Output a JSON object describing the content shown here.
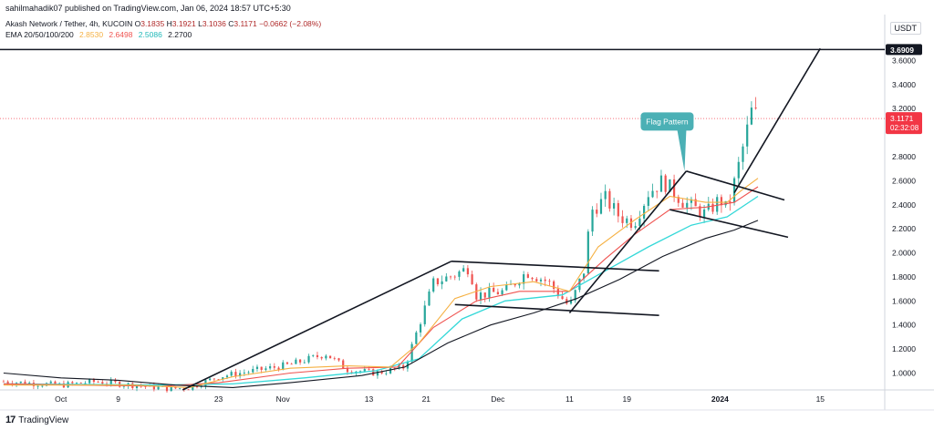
{
  "header": {
    "publisher": "sahilmahadik07 published on TradingView.com, Jan 06, 2024 18:57 UTC+5:30"
  },
  "symbol_line": {
    "symbol": "Akash Network / Tether, 4h, KUCOIN",
    "open_label": "O",
    "open": "3.1835",
    "high_label": "H",
    "high": "3.1921",
    "low_label": "L",
    "low": "3.1036",
    "close_label": "C",
    "close": "3.1171",
    "change": "−0.0662 (−2.08%)"
  },
  "ema_line": {
    "label": "EMA 20/50/100/200",
    "ema20": "2.8530",
    "ema50": "2.6498",
    "ema100": "2.5086",
    "ema200": "2.2700"
  },
  "currency": "USDT",
  "footer": {
    "logo_text": "TradingView",
    "logo_mark": "17"
  },
  "colors": {
    "up": "#26a69a",
    "down": "#ef5350",
    "ema20": "#f5b041",
    "ema50": "#ef5350",
    "ema100": "#34d8d8",
    "ema200": "#131722",
    "price_tag": "#f23645",
    "level_tag": "#131722",
    "annotation": "#4bb0b5"
  },
  "chart_data": {
    "type": "candlestick",
    "y_ticks": [
      "1.0000",
      "1.2000",
      "1.4000",
      "1.6000",
      "1.8000",
      "2.0000",
      "2.2000",
      "2.4000",
      "2.6000",
      "2.8000",
      "3.2000",
      "3.4000",
      "3.6000"
    ],
    "ylim": [
      0.86,
      3.8
    ],
    "x_ticks": [
      {
        "label": "Oct",
        "t": 0.0
      },
      {
        "label": "9",
        "t": 8.0
      },
      {
        "label": "23",
        "t": 22.0
      },
      {
        "label": "Nov",
        "t": 31.0
      },
      {
        "label": "13",
        "t": 43.0
      },
      {
        "label": "21",
        "t": 51.0
      },
      {
        "label": "Dec",
        "t": 61.0
      },
      {
        "label": "11",
        "t": 71.0
      },
      {
        "label": "19",
        "t": 79.0
      },
      {
        "label": "2024",
        "t": 92.0
      },
      {
        "label": "15",
        "t": 106.0
      }
    ],
    "xlim": [
      -8.5,
      115
    ],
    "current_price": {
      "value": 3.1171,
      "label": "3.1171",
      "countdown": "02:32:08"
    },
    "resistance": {
      "value": 3.6909,
      "label": "3.6909"
    },
    "annotation": {
      "text": "Flag Pattern",
      "x": 84.5,
      "y": 3.1
    },
    "price_path": [
      [
        -8,
        0.93
      ],
      [
        0,
        0.9
      ],
      [
        5,
        0.93
      ],
      [
        10,
        0.9
      ],
      [
        15,
        0.87
      ],
      [
        18,
        0.88
      ],
      [
        22,
        0.97
      ],
      [
        27,
        1.02
      ],
      [
        32,
        1.07
      ],
      [
        37,
        1.16
      ],
      [
        40,
        1.03
      ],
      [
        44,
        1.0
      ],
      [
        48,
        1.05
      ],
      [
        50,
        1.4
      ],
      [
        52,
        1.75
      ],
      [
        55,
        1.82
      ],
      [
        57,
        1.88
      ],
      [
        58,
        1.65
      ],
      [
        62,
        1.68
      ],
      [
        65,
        1.84
      ],
      [
        68,
        1.76
      ],
      [
        71,
        1.55
      ],
      [
        73,
        1.85
      ],
      [
        74,
        2.35
      ],
      [
        76,
        2.45
      ],
      [
        78,
        2.3
      ],
      [
        80,
        2.25
      ],
      [
        82,
        2.5
      ],
      [
        84,
        2.6
      ],
      [
        87,
        2.42
      ],
      [
        90,
        2.32
      ],
      [
        92,
        2.45
      ],
      [
        93,
        2.35
      ],
      [
        94.5,
        2.7
      ],
      [
        95.5,
        2.95
      ],
      [
        96.5,
        3.2
      ],
      [
        97.3,
        3.12
      ]
    ],
    "ema20_path": [
      [
        -8,
        0.9
      ],
      [
        10,
        0.9
      ],
      [
        18,
        0.88
      ],
      [
        24,
        0.97
      ],
      [
        32,
        1.04
      ],
      [
        40,
        1.06
      ],
      [
        46,
        1.05
      ],
      [
        50,
        1.25
      ],
      [
        55,
        1.62
      ],
      [
        60,
        1.72
      ],
      [
        66,
        1.76
      ],
      [
        71,
        1.68
      ],
      [
        75,
        2.05
      ],
      [
        80,
        2.27
      ],
      [
        85,
        2.47
      ],
      [
        90,
        2.42
      ],
      [
        93,
        2.42
      ],
      [
        95,
        2.52
      ],
      [
        97.3,
        2.62
      ]
    ],
    "ema50_path": [
      [
        -8,
        0.91
      ],
      [
        14,
        0.89
      ],
      [
        22,
        0.92
      ],
      [
        32,
        1.0
      ],
      [
        40,
        1.04
      ],
      [
        47,
        1.05
      ],
      [
        52,
        1.38
      ],
      [
        58,
        1.6
      ],
      [
        64,
        1.68
      ],
      [
        71,
        1.68
      ],
      [
        76,
        1.95
      ],
      [
        80,
        2.15
      ],
      [
        85,
        2.36
      ],
      [
        90,
        2.38
      ],
      [
        94,
        2.42
      ],
      [
        97.3,
        2.55
      ]
    ],
    "ema100_path": [
      [
        -8,
        0.91
      ],
      [
        14,
        0.9
      ],
      [
        24,
        0.91
      ],
      [
        34,
        0.96
      ],
      [
        44,
        1.02
      ],
      [
        50,
        1.12
      ],
      [
        56,
        1.45
      ],
      [
        62,
        1.6
      ],
      [
        70,
        1.65
      ],
      [
        76,
        1.85
      ],
      [
        82,
        2.05
      ],
      [
        88,
        2.23
      ],
      [
        93,
        2.3
      ],
      [
        97.3,
        2.47
      ]
    ],
    "ema200_path": [
      [
        -8,
        1.0
      ],
      [
        0,
        0.96
      ],
      [
        8,
        0.94
      ],
      [
        16,
        0.9
      ],
      [
        24,
        0.88
      ],
      [
        32,
        0.92
      ],
      [
        42,
        0.98
      ],
      [
        48,
        1.05
      ],
      [
        54,
        1.25
      ],
      [
        60,
        1.4
      ],
      [
        66,
        1.5
      ],
      [
        72,
        1.62
      ],
      [
        78,
        1.78
      ],
      [
        84,
        1.97
      ],
      [
        90,
        2.12
      ],
      [
        94,
        2.19
      ],
      [
        97.3,
        2.27
      ]
    ],
    "trendlines": [
      [
        [
          17,
          0.86
        ],
        [
          54.5,
          1.93
        ]
      ],
      [
        [
          54.5,
          1.93
        ],
        [
          83.5,
          1.85
        ]
      ],
      [
        [
          55,
          1.57
        ],
        [
          83.5,
          1.48
        ]
      ],
      [
        [
          71,
          1.5
        ],
        [
          87.3,
          2.68
        ]
      ],
      [
        [
          85,
          2.36
        ],
        [
          101.5,
          2.13
        ]
      ],
      [
        [
          87.3,
          2.68
        ],
        [
          101,
          2.44
        ]
      ],
      [
        [
          94,
          2.5
        ],
        [
          106,
          3.7
        ]
      ]
    ]
  }
}
